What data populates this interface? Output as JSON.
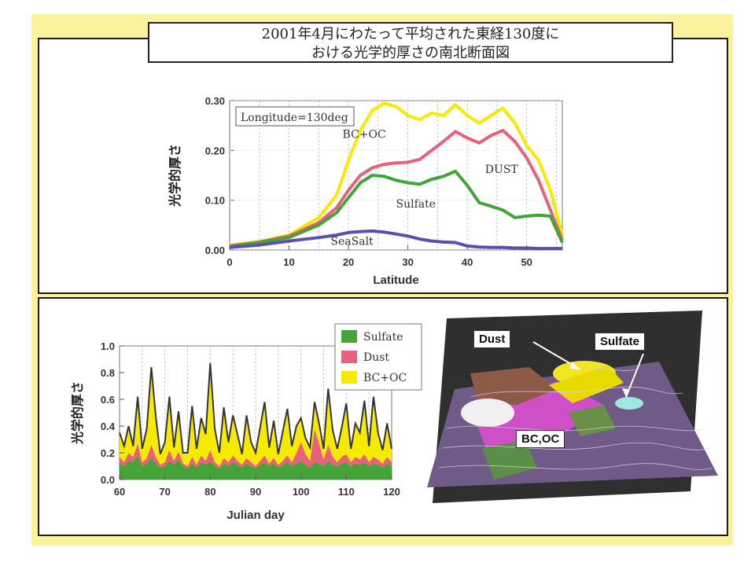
{
  "title": {
    "line1": "2001年4月にわたって平均された東経130度に",
    "line2": "おける光学的厚さの南北断面図"
  },
  "colors": {
    "slide_bg": "#fbf39b",
    "sulfate": "#44a43a",
    "dust": "#e8607a",
    "bcoc": "#f5ea00",
    "seasalt": "#5a4fb0",
    "total": "#333333"
  },
  "chart_data": [
    {
      "type": "line",
      "annotation": "Longitude=130deg",
      "xlabel": "Latitude",
      "ylabel": "光学的厚さ",
      "xlim": [
        0,
        56
      ],
      "ylim": [
        0,
        0.3
      ],
      "xticks": [
        "0",
        "10",
        "20",
        "30",
        "40",
        "50"
      ],
      "yticks": [
        "0.00",
        "0.10",
        "0.20",
        "0.30"
      ],
      "grid": "vertical dashed",
      "x": [
        0,
        5,
        10,
        15,
        18,
        20,
        22,
        24,
        26,
        28,
        30,
        32,
        34,
        36,
        38,
        40,
        42,
        44,
        46,
        48,
        50,
        52,
        54,
        56
      ],
      "series": [
        {
          "name": "BC+OC",
          "color": "#f5ea00",
          "values": [
            0.01,
            0.017,
            0.03,
            0.065,
            0.11,
            0.18,
            0.24,
            0.28,
            0.295,
            0.288,
            0.27,
            0.262,
            0.275,
            0.27,
            0.292,
            0.27,
            0.255,
            0.27,
            0.285,
            0.255,
            0.21,
            0.18,
            0.12,
            0.03
          ]
        },
        {
          "name": "DUST",
          "color": "#e8607a",
          "values": [
            0.008,
            0.016,
            0.028,
            0.055,
            0.085,
            0.12,
            0.15,
            0.165,
            0.172,
            0.175,
            0.176,
            0.182,
            0.2,
            0.218,
            0.238,
            0.225,
            0.215,
            0.23,
            0.24,
            0.218,
            0.185,
            0.14,
            0.08,
            0.02
          ]
        },
        {
          "name": "Sulfate",
          "color": "#44a43a",
          "values": [
            0.007,
            0.015,
            0.025,
            0.05,
            0.075,
            0.105,
            0.135,
            0.15,
            0.148,
            0.14,
            0.135,
            0.132,
            0.142,
            0.148,
            0.158,
            0.13,
            0.095,
            0.088,
            0.08,
            0.065,
            0.068,
            0.07,
            0.068,
            0.015
          ]
        },
        {
          "name": "SeaSalt",
          "color": "#5a4fb0",
          "values": [
            0.005,
            0.01,
            0.018,
            0.025,
            0.03,
            0.035,
            0.037,
            0.038,
            0.036,
            0.032,
            0.028,
            0.022,
            0.018,
            0.016,
            0.015,
            0.008,
            0.006,
            0.005,
            0.005,
            0.004,
            0.004,
            0.003,
            0.003,
            0.003
          ]
        }
      ],
      "labels": [
        "BC+OC",
        "DUST",
        "Sulfate",
        "SeaSalt"
      ]
    },
    {
      "type": "area",
      "xlabel": "Julian day",
      "ylabel": "光学的厚さ",
      "xlim": [
        60,
        120
      ],
      "ylim": [
        0,
        1.0
      ],
      "xticks": [
        "60",
        "70",
        "80",
        "90",
        "100",
        "110",
        "120"
      ],
      "yticks": [
        "0.0",
        "0.2",
        "0.4",
        "0.6",
        "0.8",
        "1.0"
      ],
      "grid": "vertical dashed",
      "legend": [
        "Sulfate",
        "Dust",
        "BC+OC"
      ],
      "legend_position": "top-right",
      "x": [
        60,
        61,
        62,
        63,
        64,
        65,
        66,
        67,
        68,
        69,
        70,
        71,
        72,
        73,
        74,
        75,
        76,
        77,
        78,
        79,
        80,
        81,
        82,
        83,
        84,
        85,
        86,
        87,
        88,
        89,
        90,
        91,
        92,
        93,
        94,
        95,
        96,
        97,
        98,
        99,
        100,
        101,
        102,
        103,
        104,
        105,
        106,
        107,
        108,
        109,
        110,
        111,
        112,
        113,
        114,
        115,
        116,
        117,
        118,
        119,
        120
      ],
      "series": [
        {
          "name": "Sulfate",
          "color": "#44a43a",
          "values": [
            0.12,
            0.1,
            0.14,
            0.13,
            0.18,
            0.1,
            0.12,
            0.16,
            0.12,
            0.09,
            0.1,
            0.14,
            0.11,
            0.15,
            0.1,
            0.08,
            0.12,
            0.09,
            0.13,
            0.11,
            0.14,
            0.1,
            0.08,
            0.12,
            0.1,
            0.13,
            0.11,
            0.09,
            0.12,
            0.1,
            0.08,
            0.11,
            0.13,
            0.1,
            0.12,
            0.09,
            0.11,
            0.13,
            0.1,
            0.12,
            0.14,
            0.11,
            0.09,
            0.13,
            0.12,
            0.1,
            0.14,
            0.11,
            0.1,
            0.12,
            0.13,
            0.1,
            0.12,
            0.11,
            0.13,
            0.1,
            0.12,
            0.11,
            0.09,
            0.12,
            0.1
          ]
        },
        {
          "name": "Dust",
          "color": "#e8607a",
          "values": [
            0.05,
            0.03,
            0.06,
            0.04,
            0.09,
            0.03,
            0.04,
            0.1,
            0.05,
            0.02,
            0.03,
            0.08,
            0.03,
            0.06,
            0.02,
            0.02,
            0.05,
            0.02,
            0.05,
            0.03,
            0.08,
            0.03,
            0.02,
            0.04,
            0.03,
            0.05,
            0.03,
            0.02,
            0.04,
            0.03,
            0.02,
            0.03,
            0.05,
            0.02,
            0.04,
            0.02,
            0.03,
            0.05,
            0.03,
            0.08,
            0.14,
            0.08,
            0.05,
            0.25,
            0.15,
            0.05,
            0.12,
            0.06,
            0.03,
            0.05,
            0.06,
            0.03,
            0.05,
            0.04,
            0.06,
            0.03,
            0.05,
            0.04,
            0.03,
            0.05,
            0.03
          ]
        },
        {
          "name": "BC+OC",
          "color": "#f5ea00",
          "values": [
            0.18,
            0.12,
            0.2,
            0.08,
            0.35,
            0.1,
            0.22,
            0.58,
            0.3,
            0.08,
            0.15,
            0.4,
            0.1,
            0.3,
            0.08,
            0.1,
            0.38,
            0.12,
            0.28,
            0.2,
            0.65,
            0.25,
            0.1,
            0.38,
            0.15,
            0.3,
            0.2,
            0.08,
            0.32,
            0.15,
            0.1,
            0.25,
            0.4,
            0.12,
            0.28,
            0.08,
            0.22,
            0.35,
            0.12,
            0.2,
            0.18,
            0.12,
            0.1,
            0.2,
            0.15,
            0.08,
            0.42,
            0.2,
            0.1,
            0.22,
            0.38,
            0.1,
            0.25,
            0.2,
            0.4,
            0.12,
            0.45,
            0.2,
            0.1,
            0.25,
            0.1
          ]
        }
      ]
    }
  ],
  "map": {
    "labels": {
      "dust": "Dust",
      "sulfate": "Sulfate",
      "bcoc": "BC,OC"
    }
  }
}
